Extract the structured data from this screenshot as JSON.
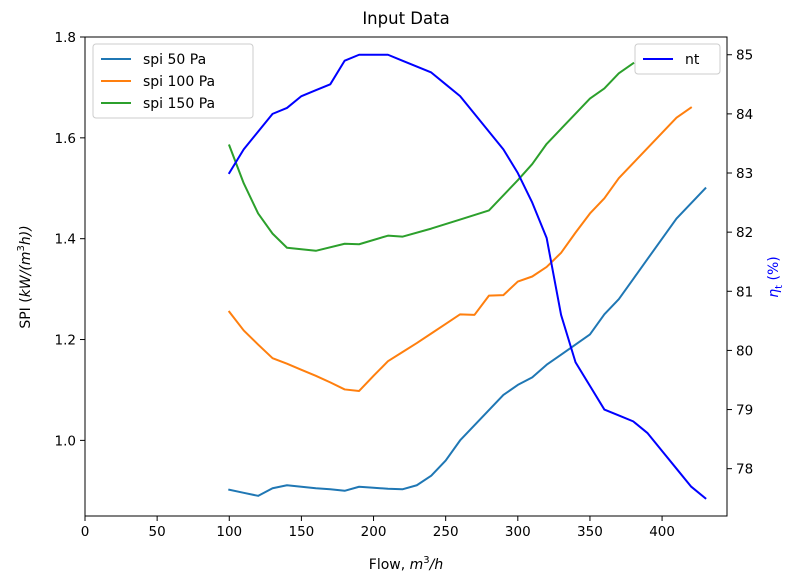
{
  "chart_data": {
    "type": "line",
    "title": "Input Data",
    "xlabel": {
      "text": "Flow, ",
      "math": "m",
      "sup": "3",
      "tail": "/h"
    },
    "ylabel_left": {
      "text": "SPI (",
      "math": "kW/(m",
      "sup": "3",
      "tail": "h))"
    },
    "ylabel_right": {
      "math": "η",
      "sub": "t",
      "tail": " (%)",
      "color": "#0000ff"
    },
    "xlim": [
      0,
      445
    ],
    "ylim_left": [
      0.85,
      1.8
    ],
    "ylim_right": [
      77.2,
      85.3
    ],
    "x_ticks": [
      0,
      50,
      100,
      150,
      200,
      250,
      300,
      350,
      400
    ],
    "y_ticks_left": [
      "1.0",
      "1.2",
      "1.4",
      "1.6",
      "1.8"
    ],
    "y_ticks_right": [
      78,
      79,
      80,
      81,
      82,
      83,
      84,
      85
    ],
    "grid": false,
    "legend_left": {
      "placement": "top-left",
      "entries": [
        "spi 50 Pa",
        "spi 100 Pa",
        "spi 150 Pa"
      ]
    },
    "legend_right": {
      "placement": "top-right",
      "entries": [
        "nt"
      ]
    },
    "series_left": [
      {
        "name": "spi 50 Pa",
        "color": "#1f77b4",
        "x": [
          100,
          110,
          120,
          130,
          140,
          150,
          160,
          170,
          180,
          190,
          200,
          210,
          220,
          230,
          240,
          250,
          260,
          270,
          280,
          290,
          300,
          310,
          320,
          330,
          340,
          350,
          360,
          370,
          380,
          390,
          400,
          410,
          420,
          430
        ],
        "y": [
          0.902,
          0.896,
          0.89,
          0.905,
          0.911,
          0.908,
          0.905,
          0.903,
          0.9,
          0.908,
          0.906,
          0.904,
          0.903,
          0.911,
          0.93,
          0.96,
          1.0,
          1.03,
          1.06,
          1.09,
          1.11,
          1.125,
          1.15,
          1.17,
          1.19,
          1.21,
          1.25,
          1.28,
          1.32,
          1.36,
          1.4,
          1.44,
          1.47,
          1.5
        ]
      },
      {
        "name": "spi 100 Pa",
        "color": "#ff7f0e",
        "x": [
          100,
          110,
          120,
          130,
          140,
          150,
          160,
          170,
          180,
          190,
          200,
          210,
          220,
          230,
          240,
          250,
          260,
          270,
          280,
          290,
          300,
          310,
          320,
          330,
          340,
          350,
          360,
          370,
          380,
          390,
          400,
          410,
          420
        ],
        "y": [
          1.255,
          1.218,
          1.19,
          1.163,
          1.152,
          1.14,
          1.128,
          1.115,
          1.101,
          1.098,
          1.128,
          1.157,
          1.175,
          1.193,
          1.212,
          1.231,
          1.25,
          1.249,
          1.287,
          1.288,
          1.315,
          1.325,
          1.344,
          1.372,
          1.412,
          1.45,
          1.48,
          1.52,
          1.55,
          1.58,
          1.61,
          1.64,
          1.66
        ]
      },
      {
        "name": "spi 150 Pa",
        "color": "#2ca02c",
        "x": [
          100,
          110,
          120,
          130,
          140,
          160,
          180,
          190,
          210,
          220,
          240,
          260,
          280,
          300,
          310,
          320,
          330,
          340,
          350,
          360,
          370,
          380
        ],
        "y": [
          1.585,
          1.51,
          1.45,
          1.41,
          1.382,
          1.376,
          1.39,
          1.389,
          1.406,
          1.404,
          1.42,
          1.438,
          1.456,
          1.516,
          1.548,
          1.588,
          1.618,
          1.648,
          1.678,
          1.698,
          1.728,
          1.748
        ]
      }
    ],
    "series_right": [
      {
        "name": "nt",
        "color": "#0000ff",
        "x": [
          100,
          110,
          120,
          130,
          140,
          150,
          160,
          170,
          180,
          190,
          200,
          210,
          220,
          230,
          240,
          250,
          260,
          270,
          280,
          290,
          300,
          310,
          320,
          330,
          340,
          350,
          360,
          370,
          380,
          390,
          400,
          410,
          420,
          430
        ],
        "y": [
          83.0,
          83.4,
          83.7,
          84.0,
          84.1,
          84.3,
          84.4,
          84.5,
          84.9,
          85.0,
          85.0,
          85.0,
          84.9,
          84.8,
          84.7,
          84.5,
          84.3,
          84.0,
          83.7,
          83.4,
          83.0,
          82.5,
          81.9,
          80.6,
          79.8,
          79.4,
          79.0,
          78.9,
          78.8,
          78.6,
          78.3,
          78.0,
          77.7,
          77.5
        ]
      }
    ]
  }
}
